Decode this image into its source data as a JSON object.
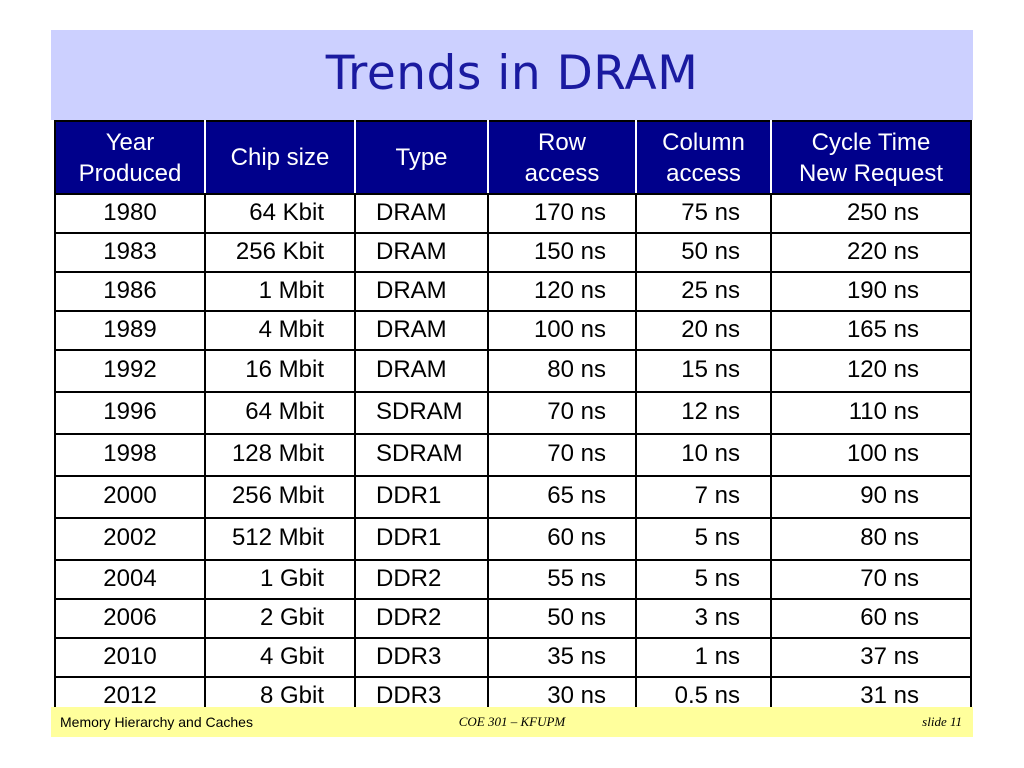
{
  "slide": {
    "title": "Trends in DRAM"
  },
  "table": {
    "headers": [
      [
        "Year",
        "Produced"
      ],
      [
        "Chip size"
      ],
      [
        "Type"
      ],
      [
        "Row",
        "access"
      ],
      [
        "Column",
        "access"
      ],
      [
        "Cycle Time",
        "New Request"
      ]
    ],
    "rows": [
      [
        "1980",
        "64 Kbit",
        "DRAM",
        "170 ns",
        "75 ns",
        "250 ns"
      ],
      [
        "1983",
        "256 Kbit",
        "DRAM",
        "150 ns",
        "50 ns",
        "220 ns"
      ],
      [
        "1986",
        "1 Mbit",
        "DRAM",
        "120 ns",
        "25 ns",
        "190 ns"
      ],
      [
        "1989",
        "4 Mbit",
        "DRAM",
        "100 ns",
        "20 ns",
        "165 ns"
      ],
      [
        "1992",
        "16 Mbit",
        "DRAM",
        "80 ns",
        "15 ns",
        "120 ns"
      ],
      [
        "1996",
        "64 Mbit",
        "SDRAM",
        "70 ns",
        "12 ns",
        "110 ns"
      ],
      [
        "1998",
        "128 Mbit",
        "SDRAM",
        "70 ns",
        "10 ns",
        "100 ns"
      ],
      [
        "2000",
        "256 Mbit",
        "DDR1",
        "65 ns",
        "7 ns",
        "90 ns"
      ],
      [
        "2002",
        "512 Mbit",
        "DDR1",
        "60 ns",
        "5 ns",
        "80 ns"
      ],
      [
        "2004",
        "1 Gbit",
        "DDR2",
        "55 ns",
        "5 ns",
        "70 ns"
      ],
      [
        "2006",
        "2 Gbit",
        "DDR2",
        "50 ns",
        "3 ns",
        "60 ns"
      ],
      [
        "2010",
        "4 Gbit",
        "DDR3",
        "35 ns",
        "1 ns",
        "37 ns"
      ],
      [
        "2012",
        "8 Gbit",
        "DDR3",
        "30 ns",
        "0.5 ns",
        "31 ns"
      ]
    ]
  },
  "footer": {
    "left": "Memory Hierarchy and Caches",
    "center": "COE 301 – KFUPM",
    "right": "slide 11"
  },
  "colors": {
    "title_band": "#ccd0ff",
    "title_text": "#1a1aa0",
    "header_bg": "#00008b",
    "footer_band": "#ffff9c"
  }
}
